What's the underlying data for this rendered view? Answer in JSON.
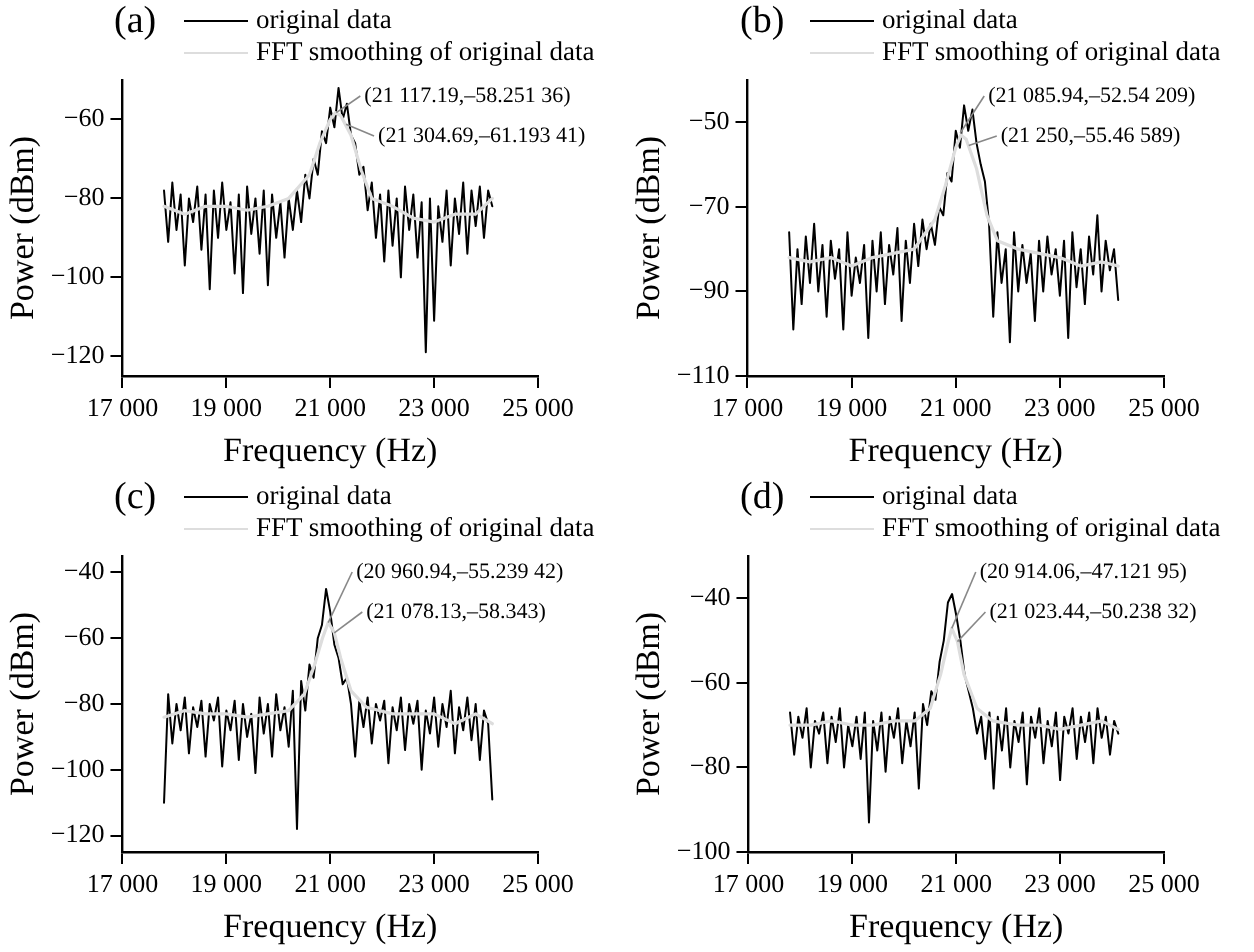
{
  "chart_data": [
    {
      "type": "line",
      "title": "(a)",
      "xlabel": "Frequency (Hz)",
      "ylabel": "Power (dBm)",
      "legend": "top",
      "grid": false,
      "xlim": [
        17000,
        25000
      ],
      "xticks": [
        {
          "value": 17000,
          "label": "17 000"
        },
        {
          "value": 19000,
          "label": "19 000"
        },
        {
          "value": 21000,
          "label": "21 000"
        },
        {
          "value": 23000,
          "label": "23 000"
        },
        {
          "value": 25000,
          "label": "25 000"
        }
      ],
      "ylim": [
        -125,
        -50
      ],
      "yticks": [
        -120,
        -100,
        -80,
        -60
      ],
      "x": [
        17800,
        17880,
        17960,
        18040,
        18120,
        18200,
        18280,
        18360,
        18440,
        18520,
        18600,
        18680,
        18760,
        18840,
        18920,
        19000,
        19080,
        19160,
        19240,
        19320,
        19400,
        19480,
        19560,
        19640,
        19720,
        19800,
        19880,
        19960,
        20040,
        20120,
        20200,
        20280,
        20360,
        20440,
        20520,
        20600,
        20680,
        20760,
        20840,
        20920,
        21000,
        21080,
        21160,
        21240,
        21320,
        21400,
        21480,
        21560,
        21640,
        21720,
        21800,
        21880,
        21960,
        22040,
        22120,
        22200,
        22280,
        22360,
        22440,
        22520,
        22600,
        22680,
        22760,
        22840,
        22920,
        23000,
        23080,
        23160,
        23240,
        23320,
        23400,
        23480,
        23560,
        23640,
        23720,
        23800,
        23880,
        23960,
        24040,
        24120
      ],
      "series": [
        {
          "name": "original data",
          "color": "#000000",
          "values": [
            -78,
            -91,
            -76,
            -88,
            -79,
            -97,
            -80,
            -86,
            -77,
            -93,
            -79,
            -103,
            -78,
            -90,
            -76,
            -88,
            -81,
            -99,
            -79,
            -104,
            -77,
            -89,
            -80,
            -94,
            -78,
            -102,
            -79,
            -90,
            -81,
            -95,
            -80,
            -88,
            -78,
            -86,
            -74,
            -80,
            -70,
            -74,
            -63,
            -66,
            -57,
            -62,
            -52,
            -60,
            -56,
            -64,
            -66,
            -74,
            -72,
            -83,
            -76,
            -90,
            -79,
            -96,
            -78,
            -92,
            -80,
            -100,
            -77,
            -88,
            -79,
            -95,
            -81,
            -119,
            -80,
            -111,
            -82,
            -91,
            -78,
            -97,
            -80,
            -89,
            -76,
            -94,
            -78,
            -87,
            -77,
            -90,
            -78,
            -82
          ]
        },
        {
          "name": "FFT smoothing of original data",
          "color": "#dddddd",
          "x": [
            17800,
            18200,
            18600,
            19000,
            19400,
            19800,
            20200,
            20600,
            20800,
            21000,
            21100,
            21200,
            21400,
            21600,
            21800,
            22200,
            22600,
            23000,
            23400,
            23800,
            24120
          ],
          "values": [
            -82,
            -84,
            -82,
            -82,
            -83,
            -82,
            -80,
            -74,
            -66,
            -60,
            -58.3,
            -59,
            -64,
            -73,
            -80,
            -82,
            -85,
            -86,
            -84,
            -84,
            -80
          ]
        }
      ],
      "annotations": [
        {
          "text": "(21 117.19,–58.251 36)",
          "x": 21117.19,
          "y": -58.25136
        },
        {
          "text": "(21 304.69,–61.193 41)",
          "x": 21304.69,
          "y": -61.19341
        }
      ]
    },
    {
      "type": "line",
      "title": "(b)",
      "xlabel": "Frequency (Hz)",
      "ylabel": "Power (dBm)",
      "legend": "top",
      "grid": false,
      "xlim": [
        17000,
        25000
      ],
      "xticks": [
        {
          "value": 17000,
          "label": "17 000"
        },
        {
          "value": 19000,
          "label": "19 000"
        },
        {
          "value": 21000,
          "label": "21 000"
        },
        {
          "value": 23000,
          "label": "23 000"
        },
        {
          "value": 25000,
          "label": "25 000"
        }
      ],
      "ylim": [
        -110,
        -40
      ],
      "yticks": [
        -110,
        -90,
        -70,
        -50
      ],
      "x": [
        17800,
        17880,
        17960,
        18040,
        18120,
        18200,
        18280,
        18360,
        18440,
        18520,
        18600,
        18680,
        18760,
        18840,
        18920,
        19000,
        19080,
        19160,
        19240,
        19320,
        19400,
        19480,
        19560,
        19640,
        19720,
        19800,
        19880,
        19960,
        20040,
        20120,
        20200,
        20280,
        20360,
        20440,
        20520,
        20600,
        20680,
        20760,
        20840,
        20920,
        21000,
        21080,
        21160,
        21240,
        21320,
        21400,
        21480,
        21560,
        21640,
        21720,
        21800,
        21880,
        21960,
        22040,
        22120,
        22200,
        22280,
        22360,
        22440,
        22520,
        22600,
        22680,
        22760,
        22840,
        22920,
        23000,
        23080,
        23160,
        23240,
        23320,
        23400,
        23480,
        23560,
        23640,
        23720,
        23800,
        23880,
        23960,
        24040,
        24120
      ],
      "series": [
        {
          "name": "original data",
          "color": "#000000",
          "values": [
            -76,
            -99,
            -80,
            -93,
            -77,
            -88,
            -74,
            -90,
            -79,
            -96,
            -78,
            -87,
            -80,
            -99,
            -76,
            -91,
            -82,
            -88,
            -79,
            -101,
            -78,
            -90,
            -76,
            -93,
            -79,
            -86,
            -75,
            -97,
            -78,
            -88,
            -74,
            -84,
            -73,
            -80,
            -74,
            -79,
            -70,
            -72,
            -62,
            -64,
            -52,
            -56,
            -46,
            -52,
            -47,
            -55,
            -60,
            -64,
            -74,
            -96,
            -76,
            -88,
            -80,
            -102,
            -76,
            -90,
            -79,
            -88,
            -81,
            -97,
            -78,
            -90,
            -77,
            -86,
            -80,
            -91,
            -78,
            -101,
            -76,
            -89,
            -80,
            -93,
            -77,
            -86,
            -72,
            -90,
            -78,
            -85,
            -80,
            -92
          ]
        },
        {
          "name": "FFT smoothing of original data",
          "color": "#dddddd",
          "x": [
            17800,
            18200,
            18600,
            19000,
            19400,
            19800,
            20200,
            20600,
            20800,
            21000,
            21100,
            21200,
            21400,
            21600,
            21800,
            22200,
            22600,
            23000,
            23400,
            23800,
            24120
          ],
          "values": [
            -82,
            -83,
            -82,
            -84,
            -82,
            -81,
            -80,
            -73,
            -65,
            -56,
            -53,
            -54,
            -61,
            -72,
            -78,
            -80,
            -81,
            -82,
            -84,
            -83,
            -84
          ]
        }
      ],
      "annotations": [
        {
          "text": "(21 085.94,–52.54 209)",
          "x": 21085.94,
          "y": -52.54209
        },
        {
          "text": "(21 250,–55.46 589)",
          "x": 21250,
          "y": -55.46589
        }
      ]
    },
    {
      "type": "line",
      "title": "(c)",
      "xlabel": "Frequency (Hz)",
      "ylabel": "Power (dBm)",
      "legend": "top",
      "grid": false,
      "xlim": [
        17000,
        25000
      ],
      "xticks": [
        {
          "value": 17000,
          "label": "17 000"
        },
        {
          "value": 19000,
          "label": "19 000"
        },
        {
          "value": 21000,
          "label": "21 000"
        },
        {
          "value": 23000,
          "label": "23 000"
        },
        {
          "value": 25000,
          "label": "25 000"
        }
      ],
      "ylim": [
        -125,
        -35
      ],
      "yticks": [
        -120,
        -100,
        -80,
        -60,
        -40
      ],
      "x": [
        17800,
        17880,
        17960,
        18040,
        18120,
        18200,
        18280,
        18360,
        18440,
        18520,
        18600,
        18680,
        18760,
        18840,
        18920,
        19000,
        19080,
        19160,
        19240,
        19320,
        19400,
        19480,
        19560,
        19640,
        19720,
        19800,
        19880,
        19960,
        20040,
        20120,
        20200,
        20280,
        20360,
        20440,
        20520,
        20600,
        20680,
        20760,
        20840,
        20920,
        21000,
        21080,
        21160,
        21240,
        21320,
        21400,
        21480,
        21560,
        21640,
        21720,
        21800,
        21880,
        21960,
        22040,
        22120,
        22200,
        22280,
        22360,
        22440,
        22520,
        22600,
        22680,
        22760,
        22840,
        22920,
        23000,
        23080,
        23160,
        23240,
        23320,
        23400,
        23480,
        23560,
        23640,
        23720,
        23800,
        23880,
        23960,
        24040,
        24120
      ],
      "series": [
        {
          "name": "original data",
          "color": "#000000",
          "values": [
            -110,
            -77,
            -92,
            -80,
            -88,
            -78,
            -95,
            -81,
            -87,
            -79,
            -96,
            -80,
            -85,
            -78,
            -99,
            -82,
            -88,
            -79,
            -97,
            -80,
            -90,
            -83,
            -101,
            -78,
            -89,
            -80,
            -96,
            -77,
            -88,
            -81,
            -93,
            -76,
            -118,
            -73,
            -82,
            -68,
            -72,
            -60,
            -56,
            -45,
            -52,
            -62,
            -66,
            -74,
            -72,
            -80,
            -96,
            -79,
            -87,
            -78,
            -92,
            -80,
            -85,
            -79,
            -98,
            -81,
            -88,
            -78,
            -94,
            -80,
            -86,
            -79,
            -100,
            -82,
            -89,
            -78,
            -93,
            -80,
            -87,
            -76,
            -95,
            -81,
            -88,
            -78,
            -91,
            -80,
            -97,
            -82,
            -86,
            -109
          ]
        },
        {
          "name": "FFT smoothing of original data",
          "color": "#dddddd",
          "x": [
            17800,
            18200,
            18600,
            19000,
            19400,
            19800,
            20200,
            20500,
            20700,
            20850,
            20961,
            21078,
            21200,
            21400,
            21700,
            22200,
            22600,
            23000,
            23400,
            23800,
            24120
          ],
          "values": [
            -84,
            -82,
            -83,
            -83,
            -84,
            -83,
            -82,
            -77,
            -68,
            -60,
            -55.2,
            -58.3,
            -66,
            -76,
            -81,
            -83,
            -83,
            -83,
            -86,
            -83,
            -86
          ]
        }
      ],
      "annotations": [
        {
          "text": "(20 960.94,–55.239 42)",
          "x": 20960.94,
          "y": -55.23942
        },
        {
          "text": "(21 078.13,–58.343)",
          "x": 21078.13,
          "y": -58.343
        }
      ]
    },
    {
      "type": "line",
      "title": "(d)",
      "xlabel": "Frequency (Hz)",
      "ylabel": "Power (dBm)",
      "legend": "top",
      "grid": false,
      "xlim": [
        17000,
        25000
      ],
      "xticks": [
        {
          "value": 17000,
          "label": "17 000"
        },
        {
          "value": 19000,
          "label": "19 000"
        },
        {
          "value": 21000,
          "label": "21 000"
        },
        {
          "value": 23000,
          "label": "23 000"
        },
        {
          "value": 25000,
          "label": "25 000"
        }
      ],
      "ylim": [
        -100,
        -30
      ],
      "yticks": [
        -100,
        -80,
        -60,
        -40
      ],
      "x": [
        17800,
        17880,
        17960,
        18040,
        18120,
        18200,
        18280,
        18360,
        18440,
        18520,
        18600,
        18680,
        18760,
        18840,
        18920,
        19000,
        19080,
        19160,
        19240,
        19320,
        19400,
        19480,
        19560,
        19640,
        19720,
        19800,
        19880,
        19960,
        20040,
        20120,
        20200,
        20280,
        20360,
        20440,
        20520,
        20600,
        20680,
        20760,
        20840,
        20920,
        21000,
        21080,
        21160,
        21240,
        21320,
        21400,
        21480,
        21560,
        21640,
        21720,
        21800,
        21880,
        21960,
        22040,
        22120,
        22200,
        22280,
        22360,
        22440,
        22520,
        22600,
        22680,
        22760,
        22840,
        22920,
        23000,
        23080,
        23160,
        23240,
        23320,
        23400,
        23480,
        23560,
        23640,
        23720,
        23800,
        23880,
        23960,
        24040,
        24120
      ],
      "series": [
        {
          "name": "original data",
          "color": "#000000",
          "values": [
            -67,
            -77,
            -68,
            -73,
            -66,
            -80,
            -69,
            -72,
            -67,
            -79,
            -68,
            -74,
            -66,
            -80,
            -70,
            -75,
            -68,
            -78,
            -67,
            -93,
            -69,
            -76,
            -67,
            -81,
            -68,
            -73,
            -66,
            -79,
            -69,
            -75,
            -67,
            -85,
            -65,
            -70,
            -62,
            -64,
            -55,
            -50,
            -41,
            -39,
            -44,
            -50,
            -58,
            -62,
            -66,
            -72,
            -68,
            -78,
            -67,
            -85,
            -68,
            -76,
            -66,
            -80,
            -69,
            -74,
            -67,
            -84,
            -68,
            -73,
            -66,
            -79,
            -69,
            -75,
            -67,
            -83,
            -68,
            -72,
            -66,
            -78,
            -68,
            -74,
            -67,
            -79,
            -66,
            -73,
            -68,
            -77,
            -69,
            -72
          ]
        },
        {
          "name": "FFT smoothing of original data",
          "color": "#dddddd",
          "x": [
            17800,
            18200,
            18600,
            19000,
            19400,
            19800,
            20200,
            20500,
            20700,
            20850,
            20914,
            21023,
            21150,
            21400,
            21700,
            22200,
            22600,
            23000,
            23400,
            23800,
            24120
          ],
          "values": [
            -70,
            -70,
            -69,
            -70,
            -70,
            -69,
            -69,
            -66,
            -58,
            -50,
            -47.1,
            -50.2,
            -58,
            -66,
            -69,
            -70,
            -70,
            -71,
            -70,
            -69,
            -71
          ]
        }
      ],
      "annotations": [
        {
          "text": "(20 914.06,–47.121 95)",
          "x": 20914.06,
          "y": -47.12195
        },
        {
          "text": "(21 023.44,–50.238 32)",
          "x": 21023.44,
          "y": -50.23832
        }
      ]
    }
  ]
}
